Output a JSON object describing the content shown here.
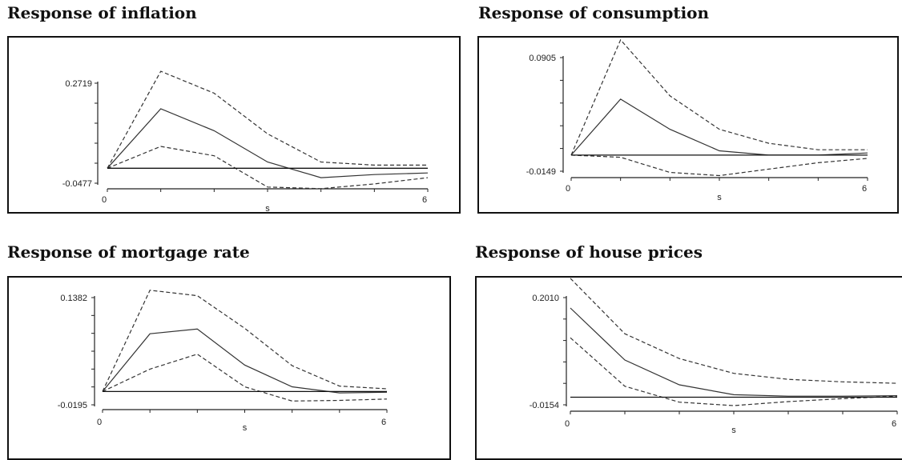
{
  "chart_data": [
    {
      "type": "line",
      "title": "Response of inflation",
      "xlabel": "s",
      "x": [
        0,
        1,
        2,
        3,
        4,
        5,
        6
      ],
      "x_tick_labels": [
        "0",
        "6"
      ],
      "y_tick_labels": [
        "0.2719",
        "-0.0477"
      ],
      "ylim": [
        -0.0477,
        0.2719
      ],
      "series": [
        {
          "style": "solid",
          "values": [
            0.0,
            0.19,
            0.12,
            0.02,
            -0.03,
            -0.02,
            -0.015
          ]
        },
        {
          "style": "dashed",
          "values": [
            0.0,
            0.31,
            0.24,
            0.11,
            0.02,
            0.01,
            0.01
          ]
        },
        {
          "style": "dashed",
          "values": [
            0.0,
            0.07,
            0.04,
            -0.06,
            -0.065,
            -0.05,
            -0.03
          ]
        },
        {
          "style": "solid",
          "values": [
            0.0,
            0.0,
            0.0,
            0.0,
            0.0,
            0.0,
            0.0
          ]
        }
      ]
    },
    {
      "type": "line",
      "title": "Response of consumption",
      "xlabel": "s",
      "x": [
        0,
        1,
        2,
        3,
        4,
        5,
        6
      ],
      "x_tick_labels": [
        "0",
        "6"
      ],
      "y_tick_labels": [
        "0.0905",
        "-0.0149"
      ],
      "ylim": [
        -0.0149,
        0.0905
      ],
      "series": [
        {
          "style": "solid",
          "values": [
            0.0,
            0.052,
            0.024,
            0.004,
            0.0,
            0.0,
            0.002
          ]
        },
        {
          "style": "dashed",
          "values": [
            0.0,
            0.107,
            0.055,
            0.024,
            0.011,
            0.005,
            0.005
          ]
        },
        {
          "style": "dashed",
          "values": [
            0.0,
            -0.002,
            -0.016,
            -0.019,
            -0.013,
            -0.007,
            -0.003
          ]
        },
        {
          "style": "solid",
          "values": [
            0.0,
            0.0,
            0.0,
            0.0,
            0.0,
            0.0,
            0.0
          ]
        }
      ]
    },
    {
      "type": "line",
      "title": "Response of mortgage rate",
      "xlabel": "s",
      "x": [
        0,
        1,
        2,
        3,
        4,
        5,
        6
      ],
      "x_tick_labels": [
        "0",
        "6"
      ],
      "y_tick_labels": [
        "0.1382",
        "-0.0195"
      ],
      "ylim": [
        -0.0195,
        0.1382
      ],
      "series": [
        {
          "style": "solid",
          "values": [
            0.0,
            0.085,
            0.092,
            0.039,
            0.007,
            -0.002,
            -0.001
          ]
        },
        {
          "style": "dashed",
          "values": [
            0.0,
            0.149,
            0.141,
            0.093,
            0.038,
            0.008,
            0.004
          ]
        },
        {
          "style": "dashed",
          "values": [
            0.0,
            0.033,
            0.055,
            0.007,
            -0.014,
            -0.013,
            -0.011
          ]
        },
        {
          "style": "solid",
          "values": [
            0.0,
            0.0,
            0.0,
            0.0,
            0.0,
            0.0,
            0.0
          ]
        }
      ]
    },
    {
      "type": "line",
      "title": "Response of house prices",
      "xlabel": "s",
      "x": [
        0,
        1,
        2,
        3,
        4,
        5,
        6
      ],
      "x_tick_labels": [
        "0",
        "6"
      ],
      "y_tick_labels": [
        "0.2010",
        "-0.0154"
      ],
      "ylim": [
        -0.0154,
        0.201
      ],
      "series": [
        {
          "style": "solid",
          "values": [
            0.18,
            0.075,
            0.025,
            0.005,
            0.002,
            0.002,
            0.003
          ]
        },
        {
          "style": "dashed",
          "values": [
            0.24,
            0.128,
            0.078,
            0.048,
            0.036,
            0.031,
            0.028
          ]
        },
        {
          "style": "dashed",
          "values": [
            0.12,
            0.022,
            -0.01,
            -0.017,
            -0.009,
            -0.003,
            0.002
          ]
        },
        {
          "style": "solid",
          "values": [
            0.0,
            0.0,
            0.0,
            0.0,
            0.0,
            0.0,
            0.0
          ]
        }
      ]
    }
  ]
}
